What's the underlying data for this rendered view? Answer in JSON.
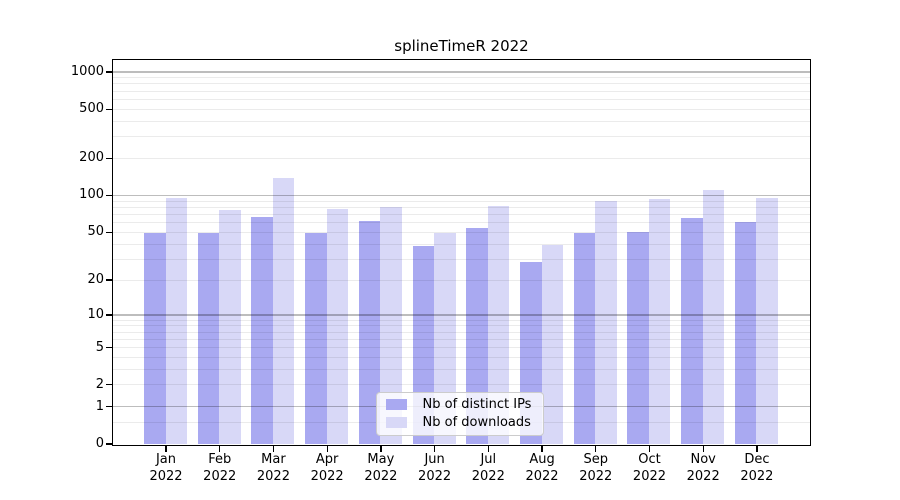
{
  "chart_data": {
    "type": "bar",
    "title": "splineTimeR 2022",
    "categories": [
      "Jan 2022",
      "Feb 2022",
      "Mar 2022",
      "Apr 2022",
      "May 2022",
      "Jun 2022",
      "Jul 2022",
      "Aug 2022",
      "Sep 2022",
      "Oct 2022",
      "Nov 2022",
      "Dec 2022"
    ],
    "series": [
      {
        "name": "Nb of distinct IPs",
        "color": "#a9a9f1",
        "values": [
          49,
          49,
          66,
          49,
          61,
          38,
          54,
          28,
          49,
          50,
          65,
          60
        ]
      },
      {
        "name": "Nb of downloads",
        "color": "#d8d8f7",
        "values": [
          95,
          75,
          138,
          77,
          80,
          49,
          82,
          39,
          89,
          92,
          110,
          95
        ]
      }
    ],
    "y_axis": {
      "scale": "log1p",
      "tick_values": [
        0,
        1,
        2,
        5,
        10,
        20,
        50,
        100,
        200,
        500,
        1000
      ],
      "tick_labels": [
        "0",
        "1",
        "2",
        "5",
        "10",
        "20",
        "50",
        "100",
        "200",
        "500",
        "1000"
      ],
      "major_gridlines": [
        1,
        10,
        100,
        1000
      ],
      "minor_gridlines": [
        0.5,
        2,
        3,
        4,
        5,
        6,
        7,
        8,
        9,
        20,
        30,
        40,
        50,
        60,
        70,
        80,
        90,
        200,
        300,
        400,
        500,
        600,
        700,
        800,
        900
      ]
    },
    "legend": {
      "position": "lower center",
      "entries": [
        "Nb of distinct IPs",
        "Nb of downloads"
      ]
    },
    "grid": true,
    "background": "#ffffff",
    "text_color": "#000000"
  }
}
